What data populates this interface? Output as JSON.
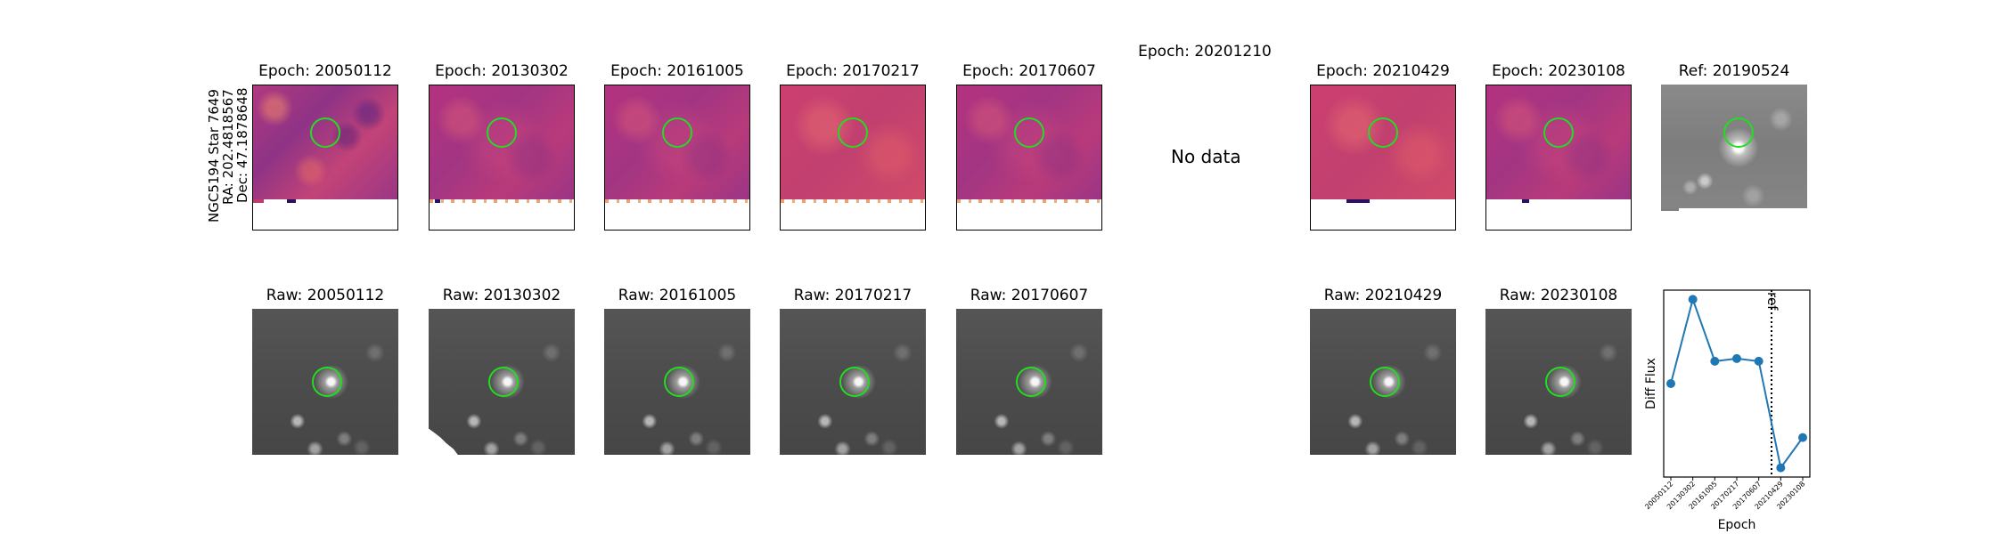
{
  "star_info": {
    "name": "NGC5194 Star 7649",
    "ra": "RA: 202.4818567",
    "dec": "Dec: 47.1878648"
  },
  "epoch_panels": [
    {
      "title": "Epoch: 20050112",
      "has_data": true
    },
    {
      "title": "Epoch: 20130302",
      "has_data": true
    },
    {
      "title": "Epoch: 20161005",
      "has_data": true
    },
    {
      "title": "Epoch: 20170217",
      "has_data": true
    },
    {
      "title": "Epoch: 20170607",
      "has_data": true
    },
    {
      "title": "Epoch: 20201210",
      "has_data": false,
      "no_data_text": "No data"
    },
    {
      "title": "Epoch: 20210429",
      "has_data": true
    },
    {
      "title": "Epoch: 20230108",
      "has_data": true
    }
  ],
  "ref_panel": {
    "title": "Ref: 20190524"
  },
  "raw_panels": [
    {
      "title": "Raw: 20050112"
    },
    {
      "title": "Raw: 20130302"
    },
    {
      "title": "Raw: 20161005"
    },
    {
      "title": "Raw: 20170217"
    },
    {
      "title": "Raw: 20170607"
    },
    {
      "title": "Raw: 20210429"
    },
    {
      "title": "Raw: 20230108"
    }
  ],
  "colors": {
    "marker_circle": "#22dd22",
    "line": "#1f77b4"
  },
  "chart_data": {
    "type": "line",
    "x": [
      "20050112",
      "20130302",
      "20161005",
      "20170217",
      "20170607",
      "20210429",
      "20230108"
    ],
    "values": [
      0.36,
      1.0,
      0.53,
      0.55,
      0.53,
      -0.28,
      -0.05
    ],
    "ref_marker": {
      "label": "ref",
      "x_position_between": [
        "20170607",
        "20210429"
      ],
      "style": "dotted"
    },
    "xlabel": "Epoch",
    "ylabel": "Diff Flux",
    "ylim": [
      -0.35,
      1.07
    ],
    "grid": false
  }
}
